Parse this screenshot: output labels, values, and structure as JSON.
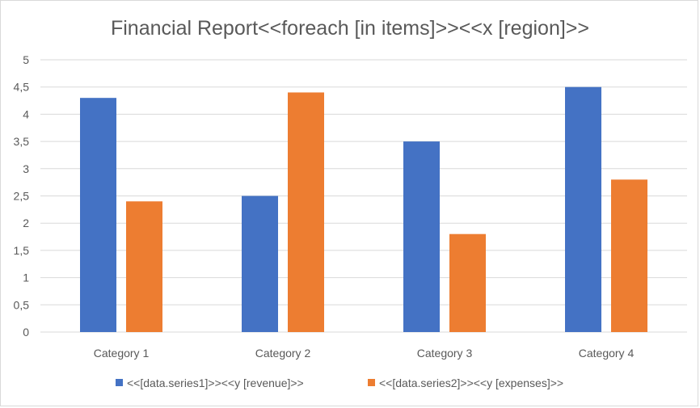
{
  "chart_data": {
    "type": "bar",
    "title": "Financial Report<<foreach [in items]>><<x [region]>>",
    "xlabel": "",
    "ylabel": "",
    "categories": [
      "Category 1",
      "Category 2",
      "Category 3",
      "Category 4"
    ],
    "series": [
      {
        "name": "<<[data.series1]>><<y [revenue]>>",
        "values": [
          4.3,
          2.5,
          3.5,
          4.5
        ],
        "color": "#4472C4"
      },
      {
        "name": "<<[data.series2]>><<y [expenses]>>",
        "values": [
          2.4,
          4.4,
          1.8,
          2.8
        ],
        "color": "#ED7D31"
      }
    ],
    "ylim": [
      0,
      5
    ],
    "yticks": [
      "0",
      "0,5",
      "1",
      "1,5",
      "2",
      "2,5",
      "3",
      "3,5",
      "4",
      "4,5",
      "5"
    ],
    "grid": true,
    "gridline_color": "#d9d9d9",
    "legend_position": "bottom"
  }
}
